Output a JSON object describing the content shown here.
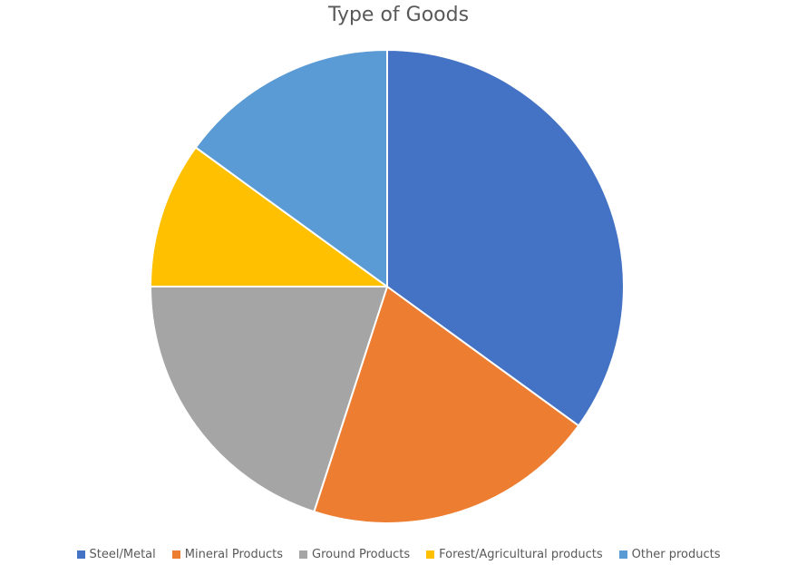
{
  "chart_data": {
    "type": "pie",
    "title": "Type of Goods",
    "categories": [
      "Steel/Metal",
      "Mineral Products",
      "Ground Products",
      "Forest/Agricultural products",
      "Other products"
    ],
    "values": [
      35,
      20,
      20,
      10,
      15
    ],
    "colors": [
      "#4472C4",
      "#ED7D31",
      "#A5A5A5",
      "#FFC000",
      "#5B9BD5"
    ],
    "legend_position": "bottom",
    "start_angle_deg": 0,
    "direction": "clockwise"
  }
}
